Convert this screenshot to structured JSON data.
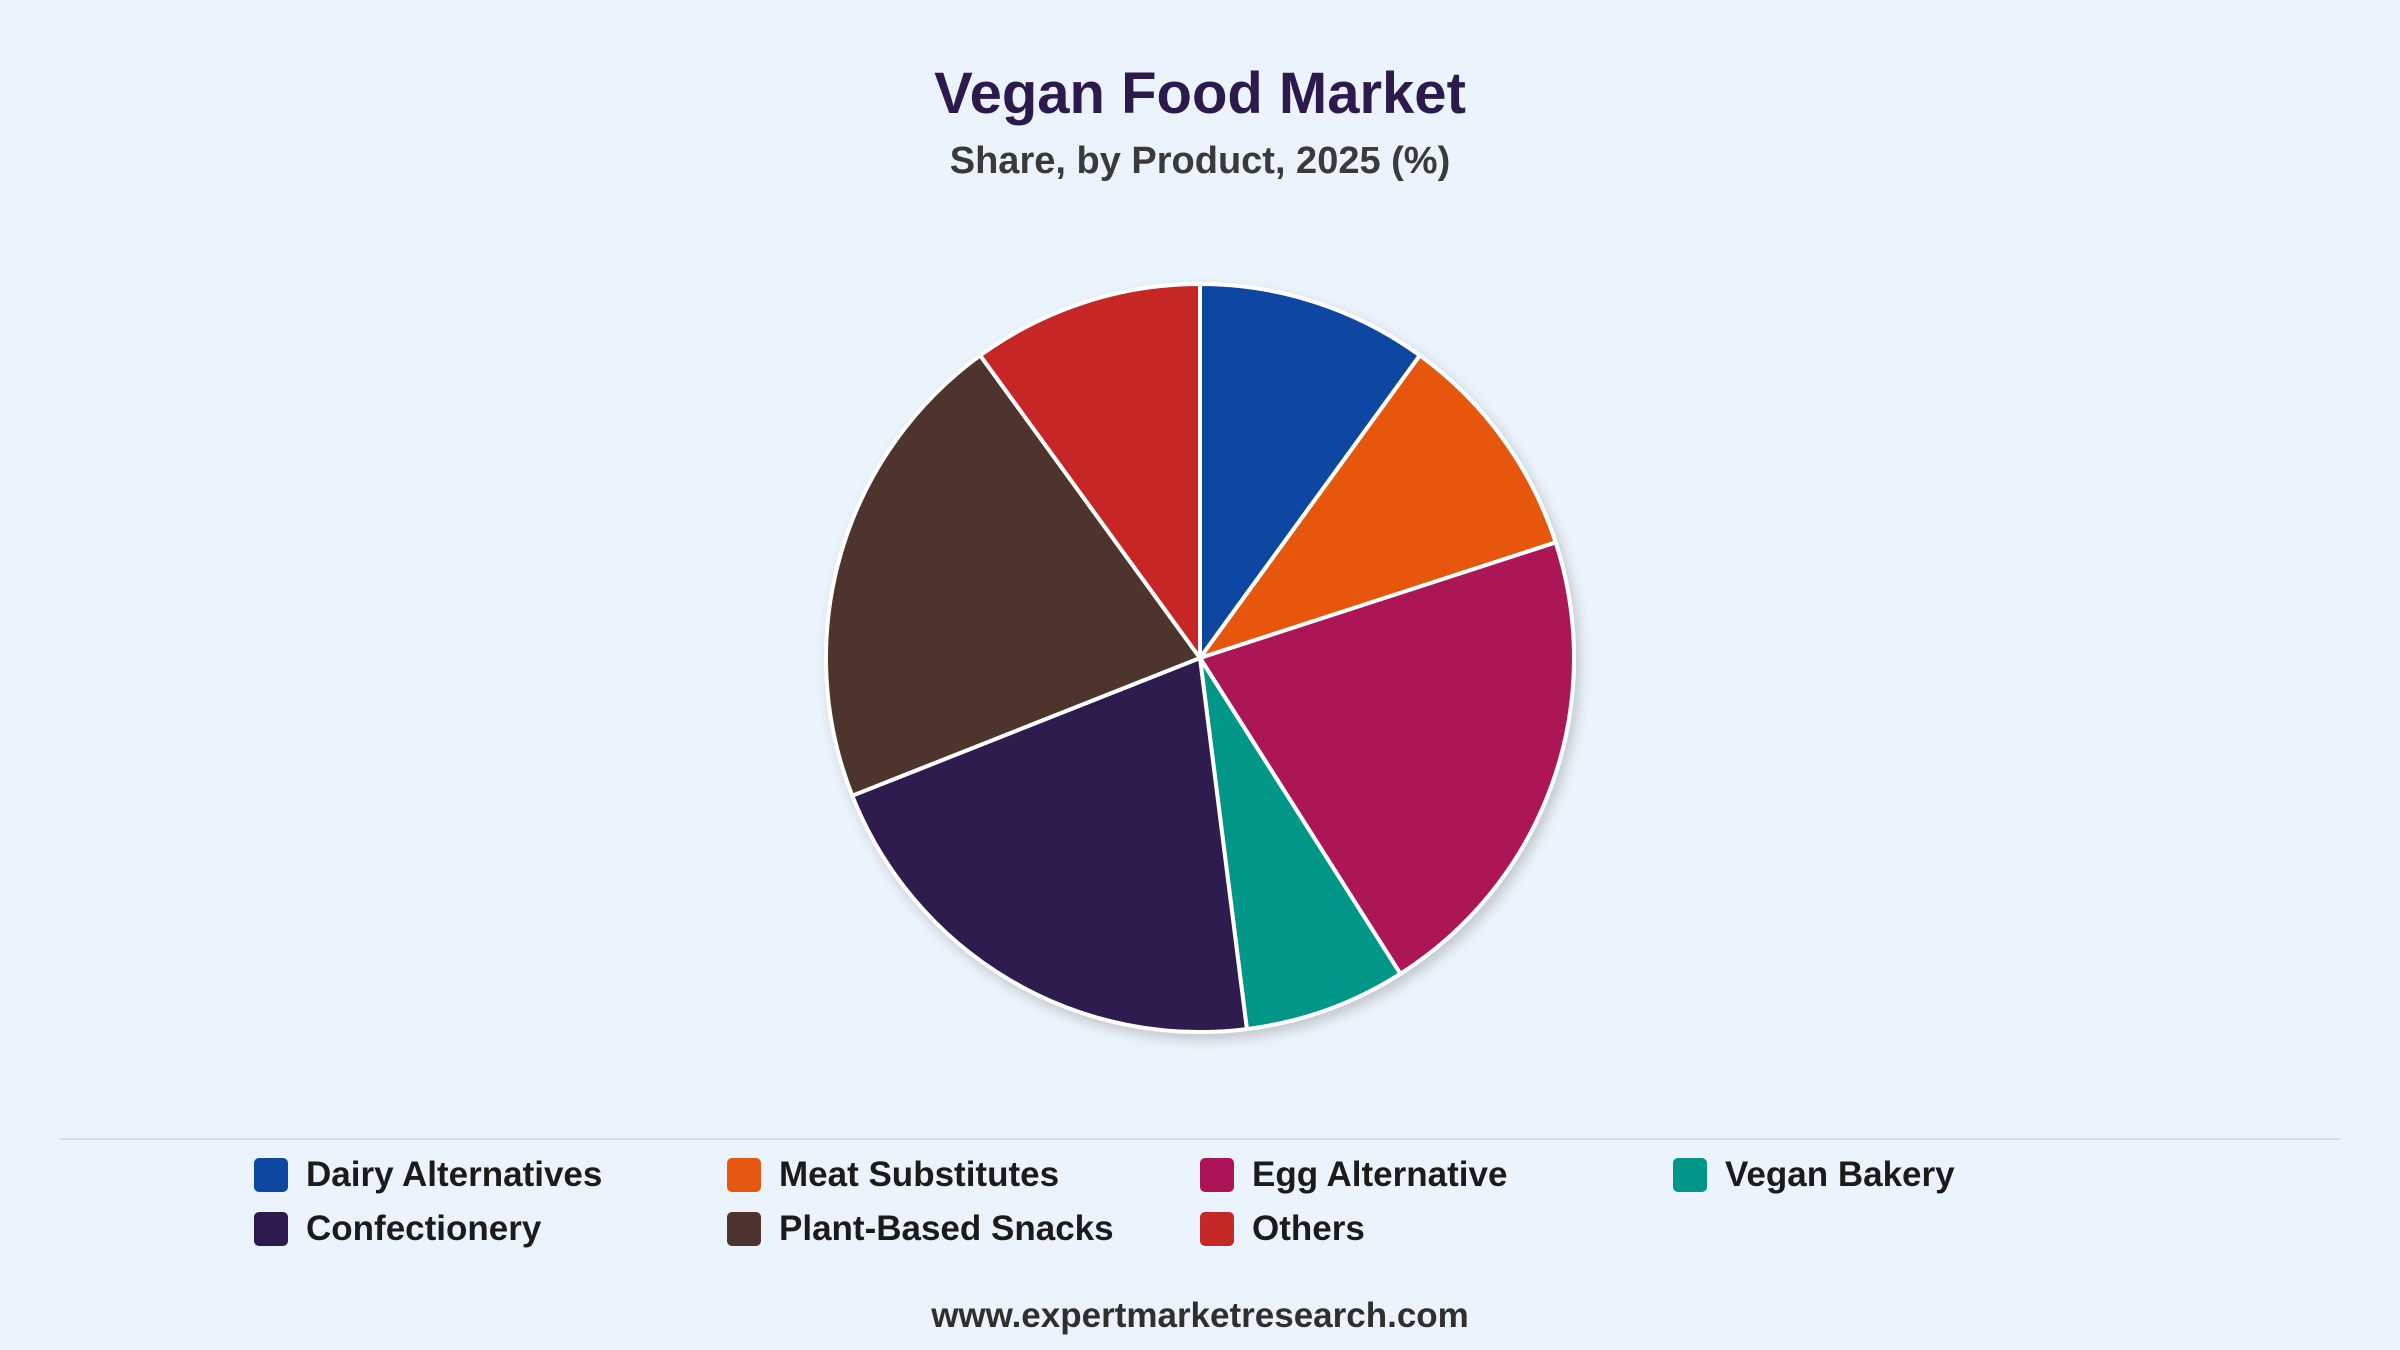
{
  "header": {
    "title": "Vegan Food Market",
    "subtitle": "Share, by Product, 2025 (%)"
  },
  "chart_data": {
    "type": "pie",
    "title": "Vegan Food Market",
    "subtitle": "Share, by Product, 2025 (%)",
    "start_angle": "12 o'clock, clockwise",
    "legend_position": "bottom",
    "slices": [
      {
        "label": "Dairy Alternatives",
        "value": 10.0,
        "color": "#0d47a1"
      },
      {
        "label": "Meat Substitutes",
        "value": 10.0,
        "color": "#e65710"
      },
      {
        "label": "Egg Alternative",
        "value": 21.0,
        "color": "#ad1457"
      },
      {
        "label": "Vegan Bakery",
        "value": 7.0,
        "color": "#009688"
      },
      {
        "label": "Confectionery",
        "value": 21.0,
        "color": "#2e1a4f"
      },
      {
        "label": "Plant-Based Snacks",
        "value": 21.0,
        "color": "#4e342e"
      },
      {
        "label": "Others",
        "value": 10.0,
        "color": "#c62828"
      }
    ]
  },
  "footer": {
    "url": "www.expertmarketresearch.com"
  }
}
